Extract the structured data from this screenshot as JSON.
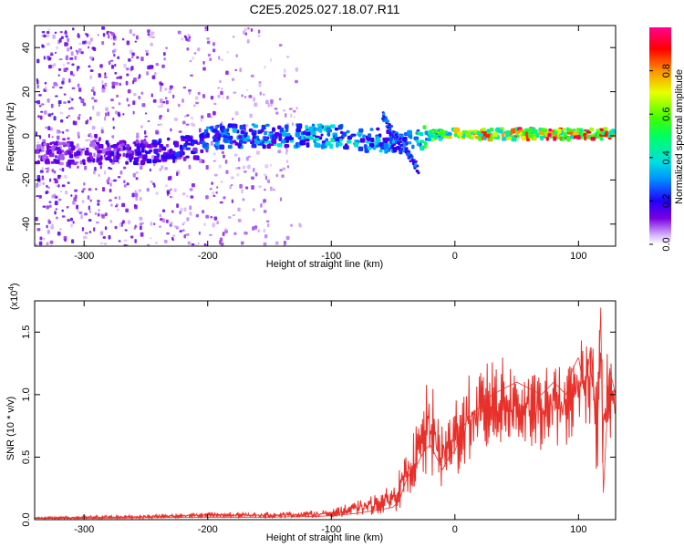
{
  "title": "C2E5.2025.027.18.07.R11",
  "chart_data": [
    {
      "type": "heatmap",
      "xlabel": "Height of straight line (km)",
      "ylabel": "Frequency (Hz)",
      "xlim": [
        -340,
        130
      ],
      "ylim": [
        -50,
        50
      ],
      "x_ticks": [
        -300,
        -200,
        -100,
        0,
        100
      ],
      "x_tick_labels": [
        "-300",
        "-200",
        "-100",
        "0",
        "100"
      ],
      "y_ticks": [
        -40,
        -20,
        0,
        20,
        40
      ],
      "y_tick_labels": [
        "-40",
        "-20",
        "0",
        "20",
        "40"
      ],
      "colorbar": {
        "label": "Normalized spectral amplitude",
        "range": [
          0,
          1
        ],
        "ticks": [
          0.0,
          0.2,
          0.4,
          0.6,
          0.8
        ],
        "tick_labels": [
          "0.0",
          "0.2",
          "0.4",
          "0.6",
          "0.8"
        ],
        "colormap": "rainbow (violet → blue → cyan → green → yellow → orange → red → magenta)"
      },
      "features": [
        {
          "name": "diffuse scatter",
          "x_range": [
            -340,
            -125
          ],
          "freq_range": [
            -50,
            50
          ],
          "amplitude": 0.1
        },
        {
          "name": "carrier band",
          "x": [
            -340,
            -300,
            -250,
            -210,
            -200,
            -150,
            -100,
            -60,
            -40,
            -25,
            0,
            50,
            100,
            130
          ],
          "freq": [
            -8,
            -8,
            -7,
            -5,
            0,
            0,
            0,
            -2,
            -3,
            0,
            1,
            1,
            1,
            1
          ],
          "amplitude": [
            0.15,
            0.15,
            0.2,
            0.25,
            0.3,
            0.35,
            0.4,
            0.35,
            0.3,
            0.6,
            0.75,
            0.9,
            0.9,
            0.85
          ]
        },
        {
          "name": "drifting trace",
          "x": [
            -60,
            -50,
            -40,
            -30
          ],
          "freq": [
            10,
            5,
            -5,
            -15
          ],
          "amplitude": 0.3
        }
      ],
      "grid": false
    },
    {
      "type": "line",
      "xlabel": "Height of straight line (km)",
      "ylabel": "SNR (10 * v/v)",
      "scale_label": "(x10",
      "scale_exponent": "4",
      "xlim": [
        -340,
        130
      ],
      "ylim": [
        0,
        1.75
      ],
      "x_ticks": [
        -300,
        -200,
        -100,
        0,
        100
      ],
      "x_tick_labels": [
        "-300",
        "-200",
        "-100",
        "0",
        "100"
      ],
      "y_ticks": [
        0.0,
        0.5,
        1.0,
        1.5
      ],
      "y_tick_labels": [
        "0.0",
        "0.5",
        "1.0",
        "1.5"
      ],
      "series_color": "#e8302a",
      "x": [
        -340,
        -300,
        -250,
        -200,
        -150,
        -120,
        -100,
        -80,
        -60,
        -50,
        -45,
        -40,
        -35,
        -30,
        -25,
        -20,
        -15,
        -10,
        -5,
        0,
        5,
        10,
        20,
        30,
        40,
        50,
        60,
        70,
        80,
        90,
        95,
        100,
        105,
        110,
        115,
        118,
        120,
        125,
        130
      ],
      "y": [
        0.01,
        0.01,
        0.015,
        0.02,
        0.02,
        0.025,
        0.03,
        0.05,
        0.08,
        0.1,
        0.15,
        0.3,
        0.4,
        0.45,
        0.55,
        0.6,
        0.5,
        0.4,
        0.5,
        0.55,
        0.7,
        0.8,
        0.9,
        1.0,
        1.05,
        1.1,
        1.05,
        1.0,
        1.1,
        1.0,
        1.2,
        1.3,
        1.0,
        1.4,
        0.6,
        1.7,
        0.2,
        1.2,
        1.0
      ],
      "y_envelope_max": [
        0.02,
        0.03,
        0.04,
        0.06,
        0.06,
        0.07,
        0.08,
        0.15,
        0.22,
        0.3,
        0.4,
        0.5,
        0.65,
        0.8,
        1.0,
        1.2,
        0.9,
        0.8,
        0.9,
        1.0,
        1.05,
        1.15,
        1.2,
        1.3,
        1.3,
        1.2,
        1.15,
        1.2,
        1.25,
        1.2,
        1.3,
        1.55,
        1.4,
        1.6,
        1.5,
        1.75,
        1.4,
        1.35,
        1.2
      ],
      "grid": false
    }
  ]
}
